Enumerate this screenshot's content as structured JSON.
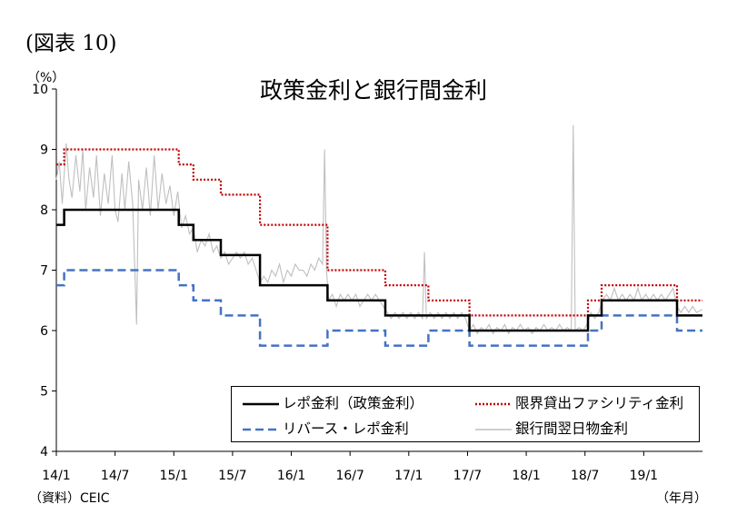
{
  "figure_label": "(図表 10)",
  "source_note": "（資料）CEIC",
  "x_unit": "（年月）",
  "chart_data": {
    "type": "line",
    "title": "政策金利と銀行間金利",
    "y_unit": "（%）",
    "ylim": [
      4,
      10
    ],
    "y_ticks": [
      4,
      5,
      6,
      7,
      8,
      9,
      10
    ],
    "x_range": [
      0,
      66
    ],
    "x_ticks": [
      {
        "label": "14/1",
        "x": 0
      },
      {
        "label": "14/7",
        "x": 6
      },
      {
        "label": "15/1",
        "x": 12
      },
      {
        "label": "15/7",
        "x": 18
      },
      {
        "label": "16/1",
        "x": 24
      },
      {
        "label": "16/7",
        "x": 30
      },
      {
        "label": "17/1",
        "x": 36
      },
      {
        "label": "17/7",
        "x": 42
      },
      {
        "label": "18/1",
        "x": 48
      },
      {
        "label": "18/7",
        "x": 54
      },
      {
        "label": "19/1",
        "x": 60
      }
    ],
    "series": [
      {
        "name": "レポ金利（政策金利）",
        "style": "solid",
        "color": "#000000",
        "steps": [
          [
            0,
            7.75
          ],
          [
            0.8,
            8.0
          ],
          [
            12.5,
            7.75
          ],
          [
            14,
            7.5
          ],
          [
            16.8,
            7.25
          ],
          [
            20.8,
            6.75
          ],
          [
            27.7,
            6.5
          ],
          [
            33.6,
            6.25
          ],
          [
            42.2,
            6.0
          ],
          [
            54.3,
            6.25
          ],
          [
            55.7,
            6.5
          ],
          [
            63.4,
            6.25
          ],
          [
            66,
            6.25
          ]
        ]
      },
      {
        "name": "限界貸出ファシリティ金利",
        "style": "dotted",
        "color": "#c00000",
        "steps": [
          [
            0,
            8.75
          ],
          [
            0.8,
            9.0
          ],
          [
            12.5,
            8.75
          ],
          [
            14,
            8.5
          ],
          [
            16.8,
            8.25
          ],
          [
            20.8,
            7.75
          ],
          [
            27.7,
            7.0
          ],
          [
            33.6,
            6.75
          ],
          [
            38,
            6.5
          ],
          [
            42.2,
            6.25
          ],
          [
            54.3,
            6.5
          ],
          [
            55.7,
            6.75
          ],
          [
            63.4,
            6.5
          ],
          [
            66,
            6.5
          ]
        ]
      },
      {
        "name": "リバース・レポ金利",
        "style": "dashed",
        "color": "#4472c4",
        "steps": [
          [
            0,
            6.75
          ],
          [
            0.8,
            7.0
          ],
          [
            12.5,
            6.75
          ],
          [
            14,
            6.5
          ],
          [
            16.8,
            6.25
          ],
          [
            20.8,
            5.75
          ],
          [
            27.7,
            6.0
          ],
          [
            33.6,
            5.75
          ],
          [
            38,
            6.0
          ],
          [
            42.2,
            5.75
          ],
          [
            54.3,
            6.0
          ],
          [
            55.7,
            6.25
          ],
          [
            63.4,
            6.0
          ],
          [
            66,
            6.0
          ]
        ]
      },
      {
        "name": "銀行間翌日物金利",
        "style": "solid",
        "color": "#bfbfbf",
        "points": [
          [
            0,
            8.5
          ],
          [
            0.3,
            8.8
          ],
          [
            0.6,
            8.1
          ],
          [
            1.0,
            9.1
          ],
          [
            1.3,
            8.5
          ],
          [
            1.6,
            8.2
          ],
          [
            2.0,
            8.9
          ],
          [
            2.4,
            8.3
          ],
          [
            2.7,
            9.0
          ],
          [
            3.0,
            8.0
          ],
          [
            3.4,
            8.7
          ],
          [
            3.8,
            8.2
          ],
          [
            4.1,
            8.9
          ],
          [
            4.5,
            7.9
          ],
          [
            4.9,
            8.6
          ],
          [
            5.3,
            8.1
          ],
          [
            5.7,
            8.9
          ],
          [
            6.0,
            8.0
          ],
          [
            6.3,
            7.8
          ],
          [
            6.7,
            8.6
          ],
          [
            7.0,
            8.0
          ],
          [
            7.4,
            8.8
          ],
          [
            7.8,
            8.1
          ],
          [
            8.2,
            6.1
          ],
          [
            8.4,
            8.5
          ],
          [
            8.8,
            8.0
          ],
          [
            9.2,
            8.7
          ],
          [
            9.6,
            7.9
          ],
          [
            10.0,
            8.9
          ],
          [
            10.4,
            8.0
          ],
          [
            10.8,
            8.6
          ],
          [
            11.2,
            8.1
          ],
          [
            11.6,
            8.4
          ],
          [
            12.0,
            7.9
          ],
          [
            12.4,
            8.3
          ],
          [
            12.8,
            7.7
          ],
          [
            13.2,
            7.9
          ],
          [
            13.6,
            7.6
          ],
          [
            14.0,
            7.7
          ],
          [
            14.4,
            7.3
          ],
          [
            14.8,
            7.5
          ],
          [
            15.2,
            7.4
          ],
          [
            15.6,
            7.6
          ],
          [
            16.0,
            7.3
          ],
          [
            16.4,
            7.4
          ],
          [
            16.8,
            7.2
          ],
          [
            17.2,
            7.3
          ],
          [
            17.6,
            7.1
          ],
          [
            18.0,
            7.2
          ],
          [
            18.4,
            7.3
          ],
          [
            18.8,
            7.2
          ],
          [
            19.2,
            7.3
          ],
          [
            19.6,
            7.1
          ],
          [
            20.0,
            7.2
          ],
          [
            20.4,
            7.0
          ],
          [
            20.8,
            6.8
          ],
          [
            21.2,
            6.9
          ],
          [
            21.6,
            6.8
          ],
          [
            22.0,
            7.0
          ],
          [
            22.4,
            6.9
          ],
          [
            22.8,
            7.1
          ],
          [
            23.2,
            6.8
          ],
          [
            23.6,
            7.0
          ],
          [
            24.0,
            6.9
          ],
          [
            24.4,
            7.1
          ],
          [
            24.8,
            7.0
          ],
          [
            25.2,
            7.0
          ],
          [
            25.6,
            6.9
          ],
          [
            26.0,
            7.1
          ],
          [
            26.4,
            7.0
          ],
          [
            26.8,
            7.2
          ],
          [
            27.2,
            7.1
          ],
          [
            27.4,
            9.0
          ],
          [
            27.6,
            7.0
          ],
          [
            27.8,
            6.5
          ],
          [
            28.2,
            6.6
          ],
          [
            28.6,
            6.4
          ],
          [
            29.0,
            6.6
          ],
          [
            29.4,
            6.5
          ],
          [
            29.8,
            6.6
          ],
          [
            30.2,
            6.5
          ],
          [
            30.6,
            6.6
          ],
          [
            31.0,
            6.4
          ],
          [
            31.4,
            6.5
          ],
          [
            31.8,
            6.6
          ],
          [
            32.2,
            6.5
          ],
          [
            32.6,
            6.6
          ],
          [
            33.0,
            6.5
          ],
          [
            33.4,
            6.4
          ],
          [
            33.8,
            6.3
          ],
          [
            34.2,
            6.2
          ],
          [
            34.6,
            6.3
          ],
          [
            35.0,
            6.2
          ],
          [
            35.4,
            6.3
          ],
          [
            35.8,
            6.2
          ],
          [
            36.2,
            6.3
          ],
          [
            36.6,
            6.2
          ],
          [
            37.0,
            6.3
          ],
          [
            37.4,
            6.2
          ],
          [
            37.6,
            7.3
          ],
          [
            37.8,
            6.2
          ],
          [
            38.2,
            6.3
          ],
          [
            38.6,
            6.2
          ],
          [
            39.0,
            6.3
          ],
          [
            39.4,
            6.2
          ],
          [
            39.8,
            6.3
          ],
          [
            40.2,
            6.2
          ],
          [
            40.6,
            6.3
          ],
          [
            41.0,
            6.2
          ],
          [
            41.4,
            6.3
          ],
          [
            41.8,
            6.2
          ],
          [
            42.2,
            6.0
          ],
          [
            42.6,
            6.1
          ],
          [
            43.0,
            5.95
          ],
          [
            43.4,
            6.05
          ],
          [
            43.8,
            6.0
          ],
          [
            44.2,
            6.1
          ],
          [
            44.6,
            5.95
          ],
          [
            45.0,
            6.05
          ],
          [
            45.4,
            6.0
          ],
          [
            45.8,
            6.1
          ],
          [
            46.2,
            5.95
          ],
          [
            46.6,
            6.05
          ],
          [
            47.0,
            6.0
          ],
          [
            47.4,
            6.1
          ],
          [
            47.8,
            6.0
          ],
          [
            48.2,
            6.05
          ],
          [
            48.6,
            5.95
          ],
          [
            49.0,
            6.05
          ],
          [
            49.4,
            6.0
          ],
          [
            49.8,
            6.1
          ],
          [
            50.2,
            6.0
          ],
          [
            50.6,
            6.05
          ],
          [
            51.0,
            6.0
          ],
          [
            51.4,
            6.1
          ],
          [
            51.8,
            6.0
          ],
          [
            52.2,
            6.05
          ],
          [
            52.6,
            6.0
          ],
          [
            52.8,
            9.4
          ],
          [
            53.0,
            6.0
          ],
          [
            53.4,
            6.05
          ],
          [
            53.8,
            6.0
          ],
          [
            54.2,
            6.1
          ],
          [
            54.6,
            6.3
          ],
          [
            55.0,
            6.2
          ],
          [
            55.4,
            6.3
          ],
          [
            55.8,
            6.5
          ],
          [
            56.2,
            6.6
          ],
          [
            56.6,
            6.5
          ],
          [
            57.0,
            6.7
          ],
          [
            57.4,
            6.5
          ],
          [
            57.8,
            6.6
          ],
          [
            58.2,
            6.5
          ],
          [
            58.6,
            6.6
          ],
          [
            59.0,
            6.5
          ],
          [
            59.4,
            6.7
          ],
          [
            59.8,
            6.5
          ],
          [
            60.2,
            6.6
          ],
          [
            60.6,
            6.5
          ],
          [
            61.0,
            6.6
          ],
          [
            61.4,
            6.5
          ],
          [
            61.8,
            6.6
          ],
          [
            62.2,
            6.5
          ],
          [
            62.6,
            6.6
          ],
          [
            63.0,
            6.7
          ],
          [
            63.4,
            6.4
          ],
          [
            63.8,
            6.3
          ],
          [
            64.2,
            6.4
          ],
          [
            64.6,
            6.3
          ],
          [
            65.0,
            6.4
          ],
          [
            65.4,
            6.3
          ],
          [
            66.0,
            6.35
          ]
        ]
      }
    ]
  }
}
